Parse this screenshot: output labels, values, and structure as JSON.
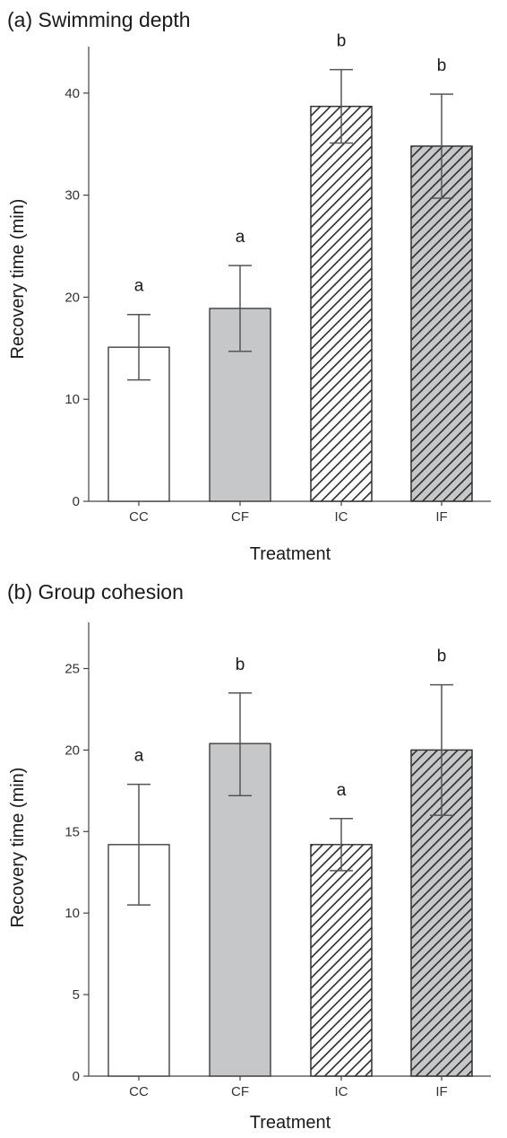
{
  "colors": {
    "CC": "#ffffff",
    "CF": "#c6c7c9",
    "IC": "#ffffff",
    "IF": "#c6c7c9",
    "hatch_stroke": "#2b2b2b",
    "outline": "#333333"
  },
  "chart_data": [
    {
      "type": "bar",
      "title": "(a) Swimming depth",
      "xlabel": "Treatment",
      "ylabel": "Recovery time (min)",
      "categories": [
        "CC",
        "CF",
        "IC",
        "IF"
      ],
      "values": [
        15.1,
        18.9,
        38.7,
        34.8
      ],
      "error_low": [
        11.9,
        14.7,
        35.1,
        29.7
      ],
      "error_high": [
        18.3,
        23.1,
        42.3,
        39.9
      ],
      "letters": [
        "a",
        "a",
        "b",
        "b"
      ],
      "hatched": [
        false,
        false,
        true,
        true
      ],
      "ylim": [
        0,
        50
      ],
      "yticks": [
        0,
        10,
        20,
        30,
        40
      ],
      "grid": false
    },
    {
      "type": "bar",
      "title": "(b) Group cohesion",
      "xlabel": "Treatment",
      "ylabel": "Recovery time (min)",
      "categories": [
        "CC",
        "CF",
        "IC",
        "IF"
      ],
      "values": [
        14.2,
        20.4,
        14.2,
        20.0
      ],
      "error_low": [
        10.5,
        17.2,
        12.6,
        16.0
      ],
      "error_high": [
        17.9,
        23.5,
        15.8,
        24.0
      ],
      "letters": [
        "a",
        "b",
        "a",
        "b"
      ],
      "hatched": [
        false,
        false,
        true,
        true
      ],
      "ylim": [
        0,
        30
      ],
      "yticks": [
        0,
        5,
        10,
        15,
        20,
        25
      ],
      "grid": false
    }
  ]
}
